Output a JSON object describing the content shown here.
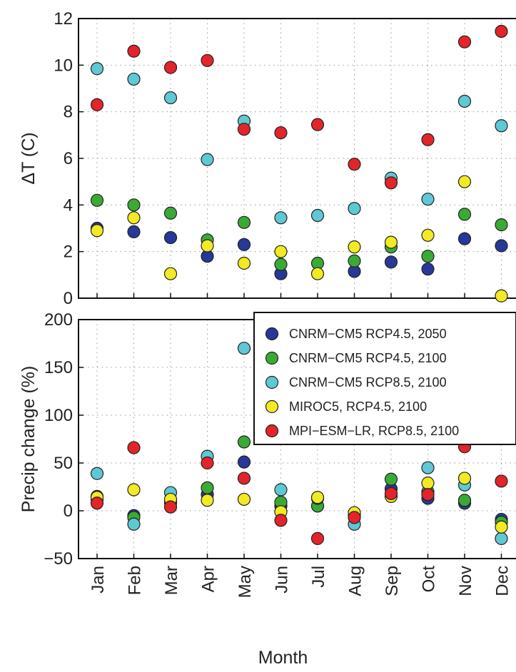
{
  "chart_data": [
    {
      "type": "scatter",
      "title": "",
      "xlabel": "",
      "ylabel": "ΔT (C)",
      "categories": [
        "Jan",
        "Feb",
        "Mar",
        "Apr",
        "May",
        "Jun",
        "Jul",
        "Aug",
        "Sep",
        "Oct",
        "Nov",
        "Dec"
      ],
      "ylim": [
        0,
        12
      ],
      "yticks": [
        0,
        2,
        4,
        6,
        8,
        10,
        12
      ],
      "grid": true,
      "series": [
        {
          "name": "CNRM−CM5 RCP4.5, 2050",
          "color": "#27389a",
          "values": [
            3.0,
            2.85,
            2.6,
            1.8,
            2.3,
            1.05,
            null,
            1.15,
            1.55,
            1.25,
            2.55,
            2.25
          ]
        },
        {
          "name": "CNRM−CM5 RCP4.5, 2100",
          "color": "#3aaa35",
          "values": [
            4.2,
            4.0,
            3.65,
            2.5,
            3.25,
            1.45,
            1.5,
            1.6,
            2.2,
            1.8,
            3.6,
            3.15
          ]
        },
        {
          "name": "CNRM−CM5 RCP8.5, 2100",
          "color": "#5ec8d4",
          "values": [
            9.85,
            9.4,
            8.6,
            5.95,
            7.6,
            3.45,
            3.55,
            3.85,
            5.15,
            4.25,
            8.45,
            7.4
          ]
        },
        {
          "name": "MIROC5, RCP4.5, 2100",
          "color": "#f2ea22",
          "values": [
            2.9,
            3.45,
            1.05,
            2.25,
            1.5,
            2.0,
            1.05,
            2.2,
            2.4,
            2.7,
            5.0,
            0.1
          ]
        },
        {
          "name": "MPI−ESM−LR, RCP8.5, 2100",
          "color": "#e3242b",
          "values": [
            8.3,
            10.6,
            9.9,
            10.2,
            7.25,
            7.1,
            7.45,
            5.75,
            4.95,
            6.8,
            11.0,
            11.45
          ]
        }
      ]
    },
    {
      "type": "scatter",
      "title": "",
      "xlabel": "Month",
      "ylabel": "Precip change (%)",
      "categories": [
        "Jan",
        "Feb",
        "Mar",
        "Apr",
        "May",
        "Jun",
        "Jul",
        "Aug",
        "Sep",
        "Oct",
        "Nov",
        "Dec"
      ],
      "ylim": [
        -50,
        200
      ],
      "yticks": [
        -50,
        0,
        50,
        100,
        150,
        200
      ],
      "grid": true,
      "legend": "top-right",
      "series": [
        {
          "name": "CNRM−CM5 RCP4.5, 2050",
          "color": "#27389a",
          "values": [
            12,
            -5,
            8,
            17,
            51,
            5,
            5,
            -3,
            23,
            13,
            8,
            -9
          ]
        },
        {
          "name": "CNRM−CM5 RCP4.5, 2100",
          "color": "#3aaa35",
          "values": [
            15,
            -7,
            10,
            24,
            72,
            9,
            5,
            -5,
            33,
            20,
            11,
            -12
          ]
        },
        {
          "name": "CNRM−CM5 RCP8.5, 2100",
          "color": "#5ec8d4",
          "values": [
            39,
            -14,
            19,
            57,
            170,
            22,
            13,
            -14,
            78,
            45,
            27,
            -29
          ]
        },
        {
          "name": "MIROC5, RCP4.5, 2100",
          "color": "#f2ea22",
          "values": [
            14,
            22,
            12,
            11,
            12,
            -1,
            14,
            -2,
            15,
            29,
            34,
            -17
          ]
        },
        {
          "name": "MPI−ESM−LR, RCP8.5, 2100",
          "color": "#e3242b",
          "values": [
            8,
            66,
            4,
            50,
            34,
            -10,
            -29,
            -7,
            18,
            17,
            67,
            31
          ]
        }
      ]
    }
  ]
}
